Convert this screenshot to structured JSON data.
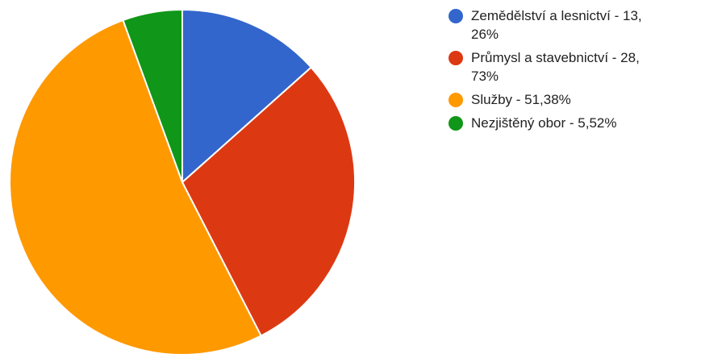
{
  "chart_data": {
    "type": "pie",
    "title": "",
    "categories": [
      "Zemědělství a lesnictví",
      "Průmysl a stavebnictví",
      "Služby",
      "Nezjištěný obor"
    ],
    "values": [
      13.26,
      28.73,
      51.38,
      5.52
    ],
    "colors": [
      "#3366cc",
      "#dc3912",
      "#ff9900",
      "#109618"
    ],
    "legend_position": "right",
    "legend": [
      {
        "label": "Zemědělství a lesnictví - 13,\n26%",
        "color": "#3366cc"
      },
      {
        "label": "Průmysl a stavebnictví - 28,\n73%",
        "color": "#dc3912"
      },
      {
        "label": "Služby - 51,38%",
        "color": "#ff9900"
      },
      {
        "label": "Nezjištěný obor - 5,52%",
        "color": "#109618"
      }
    ]
  }
}
